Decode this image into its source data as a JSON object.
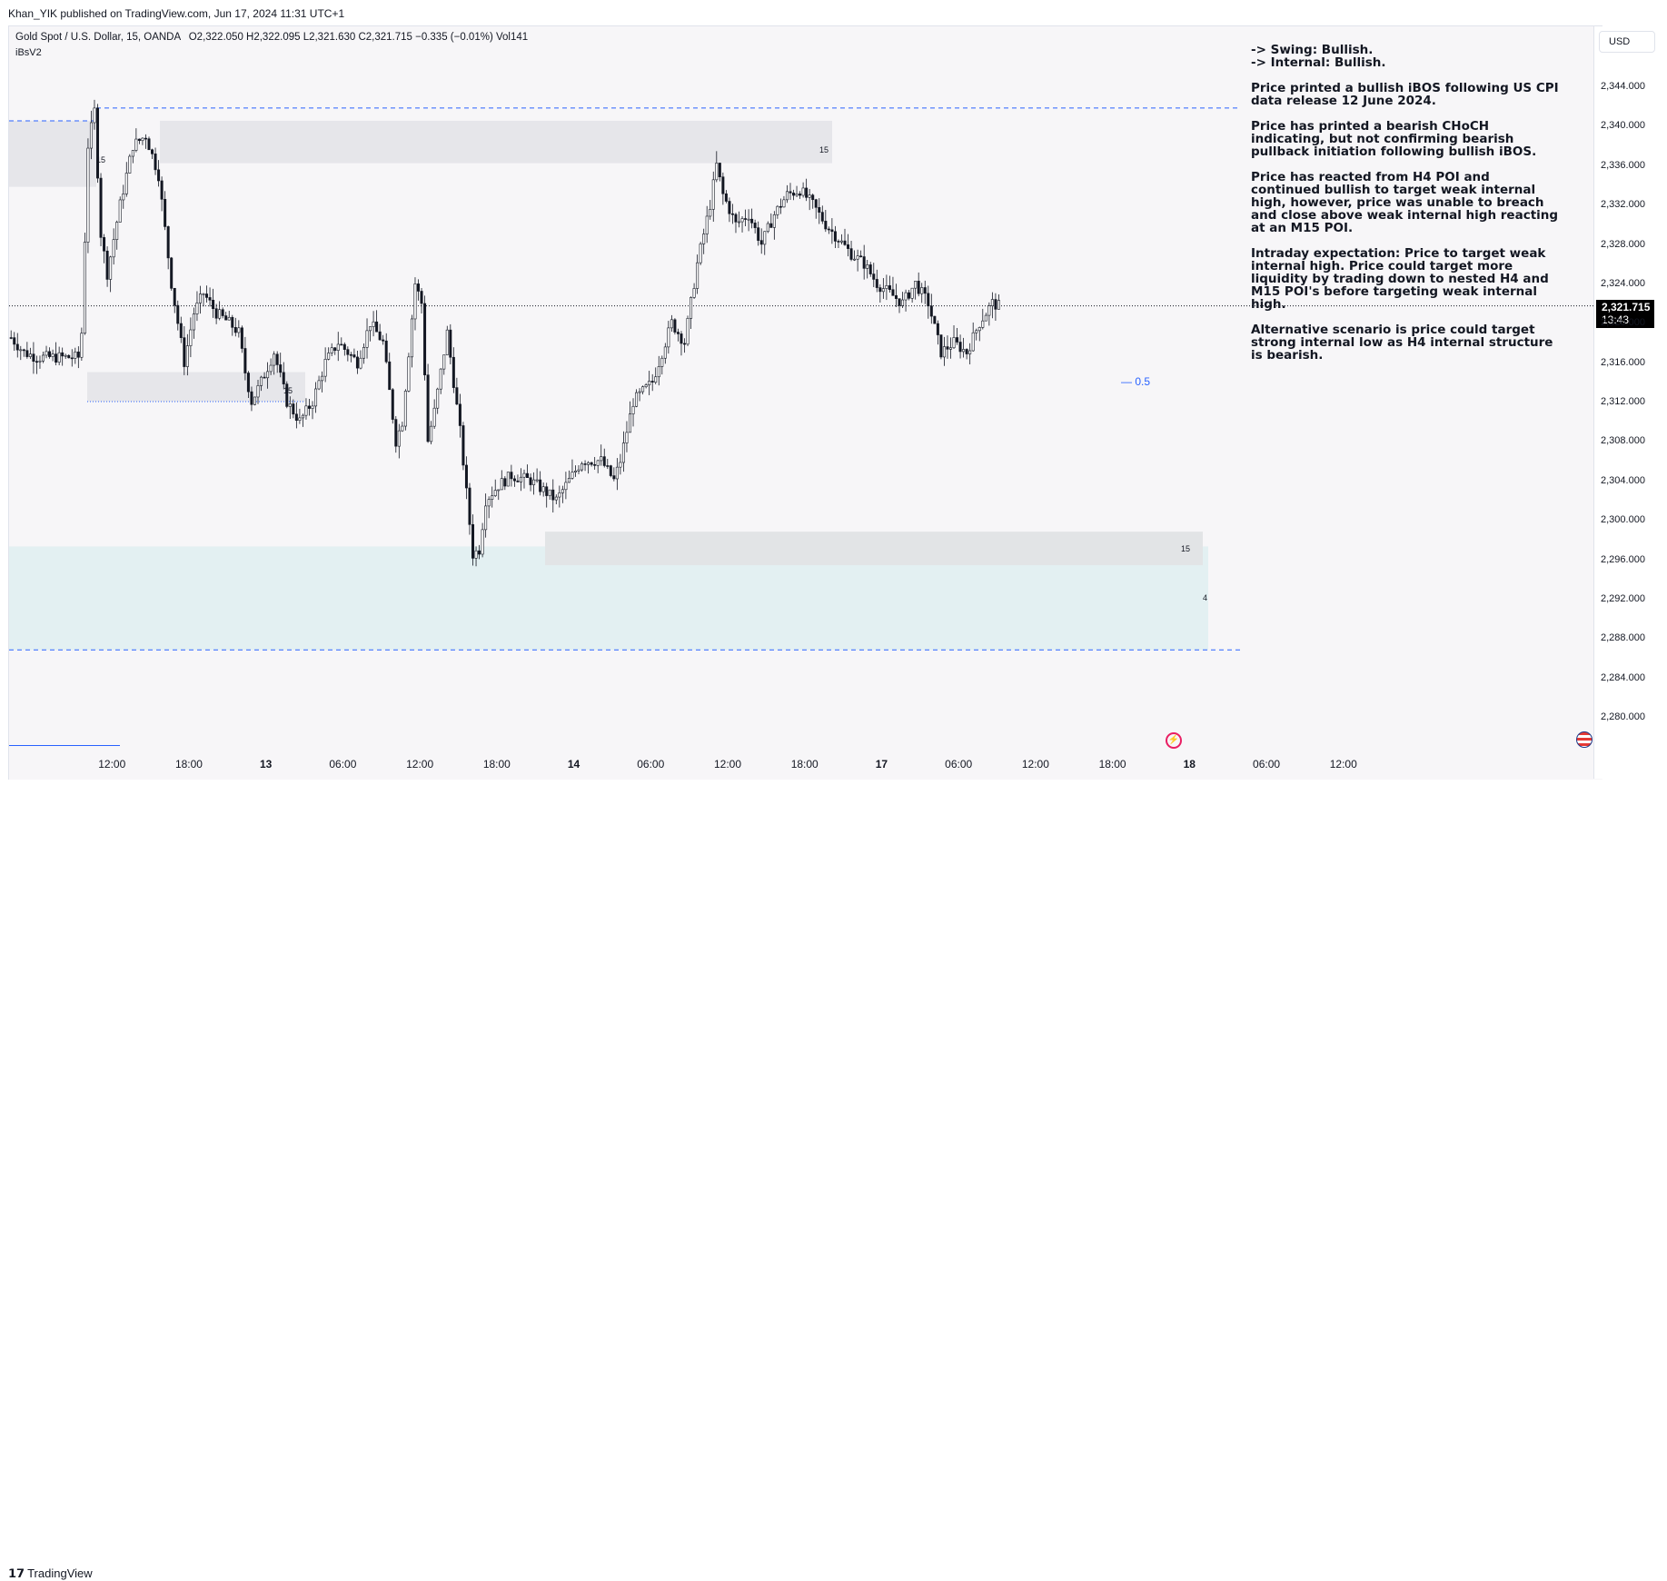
{
  "publisher_line": "Khan_YIK published on TradingView.com, Jun 17, 2024 11:31 UTC+1",
  "legend": {
    "symbol": "Gold Spot / U.S. Dollar, 15, OANDA",
    "ohlc": "O2,322.050  H2,322.095  L2,321.630  C2,321.715  −0.335 (−0.01%)  Vol141",
    "indicator": "iBsV2"
  },
  "currency": "USD",
  "last_price": {
    "price": "2,321.715",
    "countdown": "13:43",
    "value": 2321.715
  },
  "footer_brand": "TradingView",
  "notes": [
    "-> Swing: Bullish.",
    "-> Internal: Bullish.",
    "Price printed a bullish iBOS following  US CPI data release 12 June 2024.",
    "Price has printed a bearish CHoCH indicating, but not confirming bearish pullback initiation following bullish iBOS.",
    "Price has reacted from H4 POI and continued bullish to target weak internal high, however, price was unable to breach and close above weak internal high reacting at an M15 POI.",
    "Intraday expectation: Price to target weak internal high. Price could target more liquidity by trading down to nested H4 and M15 POI's before targeting weak internal high.",
    "Alternative scenario is price could target strong internal low as H4 internal structure is bearish."
  ],
  "zone_labels": {
    "z1": "15",
    "z2": "15",
    "z3": "15",
    "z4": "15",
    "z5": "4"
  },
  "fib_label": "— 0.5",
  "chart_data": {
    "type": "candlestick",
    "title": "Gold Spot / U.S. Dollar, 15, OANDA",
    "ylim": [
      2277,
      2346
    ],
    "y_ticks": [
      "2,344.000",
      "2,340.000",
      "2,336.000",
      "2,332.000",
      "2,328.000",
      "2,324.000",
      "2,320.000",
      "2,316.000",
      "2,312.000",
      "2,308.000",
      "2,304.000",
      "2,300.000",
      "2,296.000",
      "2,292.000",
      "2,288.000",
      "2,284.000",
      "2,280.000"
    ],
    "y_tick_values": [
      2344,
      2340,
      2336,
      2332,
      2328,
      2324,
      2320,
      2316,
      2312,
      2308,
      2304,
      2300,
      2296,
      2292,
      2288,
      2284,
      2280
    ],
    "x_ticks": [
      "12:00",
      "18:00",
      "13",
      "06:00",
      "12:00",
      "18:00",
      "14",
      "06:00",
      "12:00",
      "18:00",
      "17",
      "06:00",
      "12:00",
      "18:00",
      "18",
      "06:00",
      "12:00"
    ],
    "x_tick_index": [
      8,
      32,
      56,
      80,
      104,
      128,
      152,
      176,
      200,
      224,
      248,
      272,
      296,
      320,
      344,
      368,
      392
    ],
    "candle_count_span": 420,
    "keypoints": [
      [
        0,
        2318.5
      ],
      [
        4,
        2317
      ],
      [
        8,
        2316.5
      ],
      [
        14,
        2316.5
      ],
      [
        21,
        2316.5
      ],
      [
        22,
        2319
      ],
      [
        24,
        2338
      ],
      [
        26,
        2341.5
      ],
      [
        28,
        2329
      ],
      [
        30,
        2325
      ],
      [
        34,
        2332
      ],
      [
        38,
        2338
      ],
      [
        42,
        2339
      ],
      [
        46,
        2335
      ],
      [
        50,
        2324
      ],
      [
        54,
        2316
      ],
      [
        57,
        2321
      ],
      [
        60,
        2323
      ],
      [
        64,
        2321
      ],
      [
        68,
        2320
      ],
      [
        71,
        2319
      ],
      [
        73,
        2315
      ],
      [
        75,
        2312
      ],
      [
        78,
        2314
      ],
      [
        82,
        2317
      ],
      [
        86,
        2312
      ],
      [
        90,
        2310
      ],
      [
        94,
        2312
      ],
      [
        98,
        2316
      ],
      [
        102,
        2318
      ],
      [
        108,
        2316
      ],
      [
        112,
        2320
      ],
      [
        116,
        2318
      ],
      [
        118,
        2313
      ],
      [
        120,
        2308
      ],
      [
        122,
        2310
      ],
      [
        126,
        2324
      ],
      [
        128,
        2322
      ],
      [
        130,
        2308
      ],
      [
        132,
        2311
      ],
      [
        136,
        2319
      ],
      [
        140,
        2309
      ],
      [
        144,
        2296.5
      ],
      [
        146,
        2297
      ],
      [
        148,
        2302
      ],
      [
        152,
        2303.5
      ],
      [
        156,
        2304.5
      ],
      [
        162,
        2304
      ],
      [
        166,
        2303
      ],
      [
        170,
        2302
      ],
      [
        174,
        2304
      ],
      [
        178,
        2306
      ],
      [
        184,
        2306
      ],
      [
        188,
        2304
      ],
      [
        190,
        2306
      ],
      [
        194,
        2312
      ],
      [
        200,
        2314
      ],
      [
        206,
        2320
      ],
      [
        210,
        2318
      ],
      [
        214,
        2326
      ],
      [
        218,
        2332
      ],
      [
        220,
        2336
      ],
      [
        222,
        2333
      ],
      [
        226,
        2330
      ],
      [
        230,
        2331
      ],
      [
        234,
        2328
      ],
      [
        238,
        2331
      ],
      [
        242,
        2333
      ],
      [
        246,
        2333.5
      ],
      [
        250,
        2332
      ],
      [
        254,
        2330
      ],
      [
        258,
        2328.5
      ],
      [
        262,
        2327
      ],
      [
        266,
        2326
      ],
      [
        270,
        2324
      ],
      [
        274,
        2323
      ],
      [
        278,
        2322
      ],
      [
        282,
        2324
      ],
      [
        286,
        2322
      ],
      [
        290,
        2317
      ],
      [
        294,
        2318
      ],
      [
        298,
        2317
      ],
      [
        302,
        2320
      ],
      [
        306,
        2322
      ],
      [
        308,
        2321.7
      ]
    ]
  }
}
